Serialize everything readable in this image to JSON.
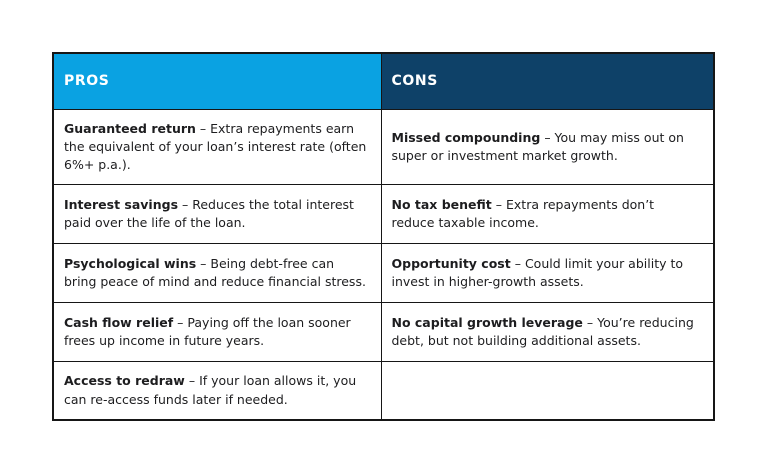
{
  "colors": {
    "pros_header_bg": "#0aa2e2",
    "cons_header_bg": "#0e4168",
    "header_text": "#ffffff",
    "body_text": "#1d1d1f",
    "border": "#161616",
    "page_bg": "#ffffff"
  },
  "table": {
    "headers": {
      "pros": "PROS",
      "cons": "CONS"
    },
    "rows": [
      {
        "pros": {
          "term": "Guaranteed return",
          "sep": "–",
          "desc": "Extra repayments earn the equivalent of your loan’s interest rate (often 6%+ p.a.)."
        },
        "cons": {
          "term": "Missed compounding",
          "sep": "–",
          "desc": "You may miss out on super or investment market growth."
        }
      },
      {
        "pros": {
          "term": "Interest savings",
          "sep": "–",
          "desc": "Reduces the total interest paid over the life of the loan."
        },
        "cons": {
          "term": "No tax benefit",
          "sep": "–",
          "desc": "Extra repayments don’t reduce taxable income."
        }
      },
      {
        "pros": {
          "term": "Psychological wins",
          "sep": "–",
          "desc": "Being debt-free can bring peace of mind and reduce financial stress."
        },
        "cons": {
          "term": "Opportunity cost",
          "sep": "–",
          "desc": "Could limit your ability to invest in higher-growth assets."
        }
      },
      {
        "pros": {
          "term": "Cash flow relief",
          "sep": "–",
          "desc": "Paying off the loan sooner frees up income in future years."
        },
        "cons": {
          "term": "No capital growth leverage",
          "sep": "–",
          "desc": "You’re reducing debt, but not building additional assets."
        }
      },
      {
        "pros": {
          "term": "Access to redraw",
          "sep": "–",
          "desc": "If your loan allows it, you can re-access funds later if needed."
        },
        "cons": {
          "term": "",
          "sep": "",
          "desc": ""
        }
      }
    ]
  }
}
